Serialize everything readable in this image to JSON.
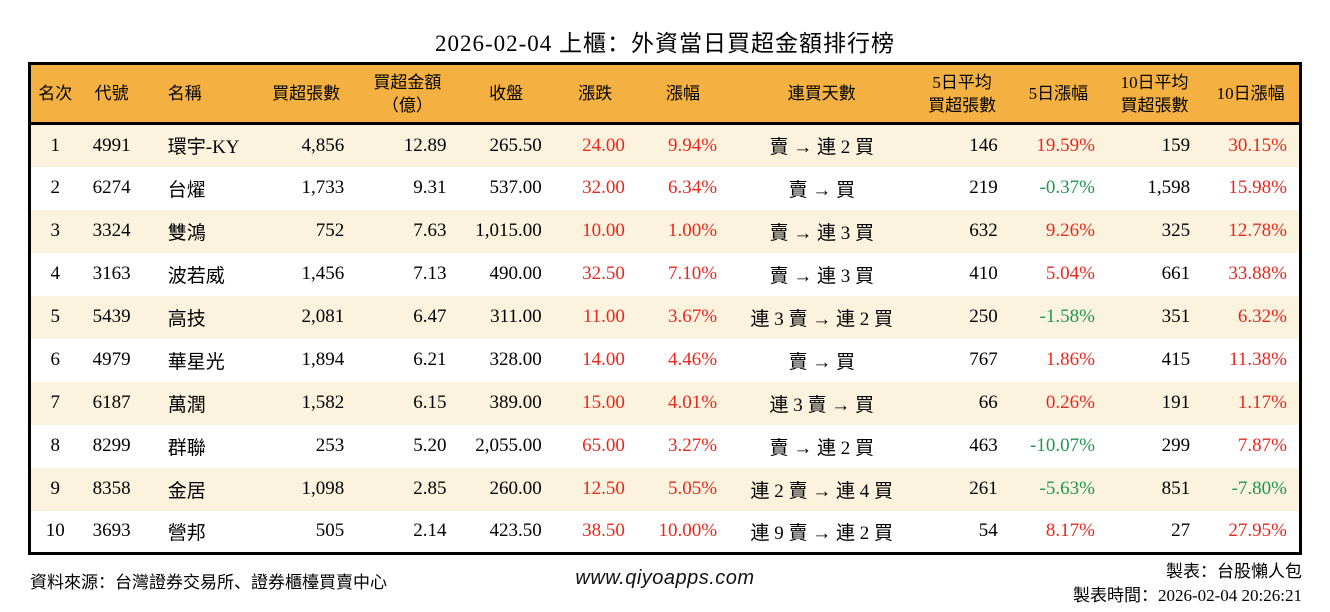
{
  "title": "2026-02-04 上櫃：外資當日買超金額排行榜",
  "colors": {
    "header_bg": "#f4b142",
    "row_alt_bg": "#fbf3de",
    "up_red": "#e8281e",
    "down_green": "#21964f"
  },
  "table": {
    "columns": [
      {
        "key": "rank",
        "label": "名次",
        "align": "center"
      },
      {
        "key": "code",
        "label": "代號",
        "align": "center"
      },
      {
        "key": "name",
        "label": "名稱",
        "align": "left"
      },
      {
        "key": "net_buy_lots",
        "label": "買超張數",
        "align": "right"
      },
      {
        "key": "net_buy_amount",
        "label": "買超金額\n（億）",
        "align": "right"
      },
      {
        "key": "close",
        "label": "收盤",
        "align": "right"
      },
      {
        "key": "change",
        "label": "漲跌",
        "align": "right"
      },
      {
        "key": "change_pct",
        "label": "漲幅",
        "align": "right"
      },
      {
        "key": "consecutive",
        "label": "連買天數",
        "align": "center"
      },
      {
        "key": "avg5_lots",
        "label": "5日平均\n買超張數",
        "align": "right"
      },
      {
        "key": "chg5_pct",
        "label": "5日漲幅",
        "align": "right"
      },
      {
        "key": "avg10_lots",
        "label": "10日平均\n買超張數",
        "align": "right"
      },
      {
        "key": "chg10_pct",
        "label": "10日漲幅",
        "align": "right"
      }
    ],
    "rows": [
      {
        "rank": "1",
        "code": "4991",
        "name": "環宇-KY",
        "net_buy_lots": "4,856",
        "net_buy_amount": "12.89",
        "close": "265.50",
        "change": "24.00",
        "change_pct": "9.94%",
        "consecutive": "賣 → 連 2 買",
        "avg5_lots": "146",
        "chg5_pct": "19.59%",
        "avg10_lots": "159",
        "chg10_pct": "30.15%"
      },
      {
        "rank": "2",
        "code": "6274",
        "name": "台燿",
        "net_buy_lots": "1,733",
        "net_buy_amount": "9.31",
        "close": "537.00",
        "change": "32.00",
        "change_pct": "6.34%",
        "consecutive": "賣 → 買",
        "avg5_lots": "219",
        "chg5_pct": "-0.37%",
        "avg10_lots": "1,598",
        "chg10_pct": "15.98%"
      },
      {
        "rank": "3",
        "code": "3324",
        "name": "雙鴻",
        "net_buy_lots": "752",
        "net_buy_amount": "7.63",
        "close": "1,015.00",
        "change": "10.00",
        "change_pct": "1.00%",
        "consecutive": "賣 → 連 3 買",
        "avg5_lots": "632",
        "chg5_pct": "9.26%",
        "avg10_lots": "325",
        "chg10_pct": "12.78%"
      },
      {
        "rank": "4",
        "code": "3163",
        "name": "波若威",
        "net_buy_lots": "1,456",
        "net_buy_amount": "7.13",
        "close": "490.00",
        "change": "32.50",
        "change_pct": "7.10%",
        "consecutive": "賣 → 連 3 買",
        "avg5_lots": "410",
        "chg5_pct": "5.04%",
        "avg10_lots": "661",
        "chg10_pct": "33.88%"
      },
      {
        "rank": "5",
        "code": "5439",
        "name": "高技",
        "net_buy_lots": "2,081",
        "net_buy_amount": "6.47",
        "close": "311.00",
        "change": "11.00",
        "change_pct": "3.67%",
        "consecutive": "連 3 賣 → 連 2 買",
        "avg5_lots": "250",
        "chg5_pct": "-1.58%",
        "avg10_lots": "351",
        "chg10_pct": "6.32%"
      },
      {
        "rank": "6",
        "code": "4979",
        "name": "華星光",
        "net_buy_lots": "1,894",
        "net_buy_amount": "6.21",
        "close": "328.00",
        "change": "14.00",
        "change_pct": "4.46%",
        "consecutive": "賣 → 買",
        "avg5_lots": "767",
        "chg5_pct": "1.86%",
        "avg10_lots": "415",
        "chg10_pct": "11.38%"
      },
      {
        "rank": "7",
        "code": "6187",
        "name": "萬潤",
        "net_buy_lots": "1,582",
        "net_buy_amount": "6.15",
        "close": "389.00",
        "change": "15.00",
        "change_pct": "4.01%",
        "consecutive": "連 3 賣 → 買",
        "avg5_lots": "66",
        "chg5_pct": "0.26%",
        "avg10_lots": "191",
        "chg10_pct": "1.17%"
      },
      {
        "rank": "8",
        "code": "8299",
        "name": "群聯",
        "net_buy_lots": "253",
        "net_buy_amount": "5.20",
        "close": "2,055.00",
        "change": "65.00",
        "change_pct": "3.27%",
        "consecutive": "賣 → 連 2 買",
        "avg5_lots": "463",
        "chg5_pct": "-10.07%",
        "avg10_lots": "299",
        "chg10_pct": "7.87%"
      },
      {
        "rank": "9",
        "code": "8358",
        "name": "金居",
        "net_buy_lots": "1,098",
        "net_buy_amount": "2.85",
        "close": "260.00",
        "change": "12.50",
        "change_pct": "5.05%",
        "consecutive": "連 2 賣 → 連 4 買",
        "avg5_lots": "261",
        "chg5_pct": "-5.63%",
        "avg10_lots": "851",
        "chg10_pct": "-7.80%"
      },
      {
        "rank": "10",
        "code": "3693",
        "name": "營邦",
        "net_buy_lots": "505",
        "net_buy_amount": "2.14",
        "close": "423.50",
        "change": "38.50",
        "change_pct": "10.00%",
        "consecutive": "連 9 賣 → 連 2 買",
        "avg5_lots": "54",
        "chg5_pct": "8.17%",
        "avg10_lots": "27",
        "chg10_pct": "27.95%"
      }
    ]
  },
  "footer": {
    "source": "資料來源：台灣證券交易所、證券櫃檯買賣中心",
    "url": "www.qiyoapps.com",
    "maker": "製表：台股懶人包",
    "time": "製表時間：2026-02-04 20:26:21"
  }
}
